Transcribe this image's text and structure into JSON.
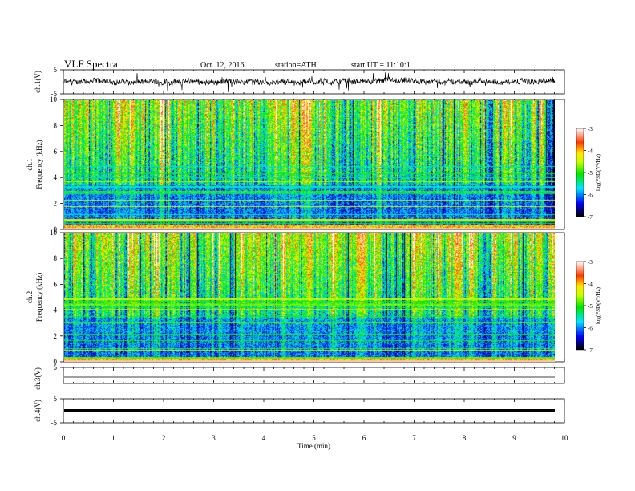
{
  "header": {
    "title": "VLF Spectra",
    "date": "Oct. 12, 2016",
    "station": "station=ATH",
    "start": "start UT = 11:10:1"
  },
  "colorbar": {
    "label": "log(PSD(V²/Hz)",
    "ticks": [
      "-3",
      "-4",
      "-5",
      "-6",
      "-7"
    ],
    "colors": [
      "#ffffff",
      "#ff0000",
      "#ffd000",
      "#ffff00",
      "#00ff00",
      "#00ffff",
      "#0000ff",
      "#000000"
    ]
  },
  "chart_data": [
    {
      "type": "line",
      "name": "ch1-waveform",
      "ylabel": "ch.1(V)",
      "yticks": [
        "5",
        "-5"
      ],
      "ylim": [
        -5,
        5
      ],
      "xlim": [
        0,
        10
      ]
    },
    {
      "type": "heatmap",
      "name": "ch1-spectrogram",
      "ylabel": "ch.1 Frequency (kHz)",
      "yticks": [
        "0",
        "2",
        "4",
        "6",
        "8",
        "10"
      ],
      "ylim": [
        0,
        10
      ],
      "xlim": [
        0,
        9.8
      ],
      "zlim": [
        -7,
        -3
      ]
    },
    {
      "type": "heatmap",
      "name": "ch2-spectrogram",
      "ylabel": "ch.2 Frequency (kHz)",
      "yticks": [
        "0",
        "2",
        "4",
        "6",
        "8",
        "10"
      ],
      "ylim": [
        0,
        10
      ],
      "xlim": [
        0,
        9.8
      ],
      "zlim": [
        -7,
        -3
      ]
    },
    {
      "type": "line",
      "name": "ch3-waveform",
      "ylabel": "ch.3(V)",
      "yticks": [
        "5"
      ],
      "ylim": [
        -5,
        5
      ],
      "xlim": [
        0,
        10
      ]
    },
    {
      "type": "line",
      "name": "ch4-waveform",
      "ylabel": "ch.4(V)",
      "yticks": [
        "5",
        "-5"
      ],
      "ylim": [
        -5,
        5
      ],
      "xlim": [
        0,
        10
      ]
    }
  ],
  "xaxis": {
    "label": "Time (min)",
    "ticks": [
      "0",
      "1",
      "2",
      "3",
      "4",
      "5",
      "6",
      "7",
      "8",
      "9",
      "10"
    ]
  }
}
